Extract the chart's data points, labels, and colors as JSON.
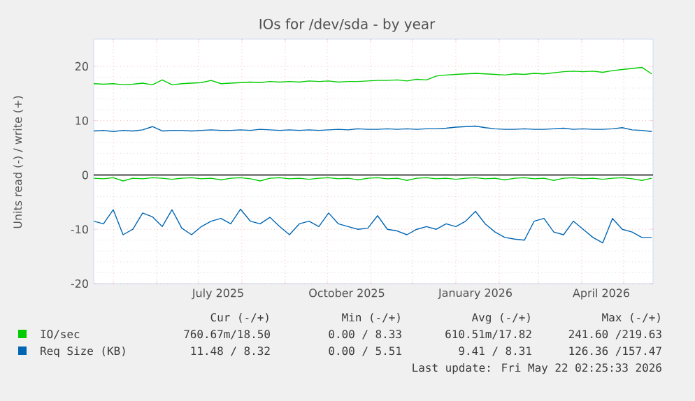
{
  "chart_data": {
    "type": "line",
    "title": "IOs for /dev/sda - by year",
    "ylabel": "Units read (-) / write (+)",
    "x": [
      "2025-04-17",
      "2025-04-24",
      "2025-05-01",
      "2025-05-08",
      "2025-05-15",
      "2025-05-22",
      "2025-05-29",
      "2025-06-05",
      "2025-06-12",
      "2025-06-19",
      "2025-06-26",
      "2025-07-03",
      "2025-07-10",
      "2025-07-17",
      "2025-07-24",
      "2025-07-31",
      "2025-08-07",
      "2025-08-14",
      "2025-08-21",
      "2025-08-28",
      "2025-09-04",
      "2025-09-11",
      "2025-09-18",
      "2025-09-25",
      "2025-10-02",
      "2025-10-09",
      "2025-10-16",
      "2025-10-23",
      "2025-10-30",
      "2025-11-06",
      "2025-11-13",
      "2025-11-20",
      "2025-11-27",
      "2025-12-04",
      "2025-12-11",
      "2025-12-18",
      "2025-12-25",
      "2026-01-01",
      "2026-01-08",
      "2026-01-15",
      "2026-01-22",
      "2026-01-29",
      "2026-02-05",
      "2026-02-12",
      "2026-02-19",
      "2026-02-26",
      "2026-03-05",
      "2026-03-12",
      "2026-03-19",
      "2026-03-26",
      "2026-04-02",
      "2026-04-09",
      "2026-04-16",
      "2026-04-23",
      "2026-04-30",
      "2026-05-07",
      "2026-05-14",
      "2026-05-21"
    ],
    "series": [
      {
        "name": "IO/sec",
        "color": "#00cc00",
        "values": [
          16.8,
          16.7,
          16.8,
          16.6,
          16.7,
          16.9,
          16.6,
          17.5,
          16.6,
          16.8,
          16.9,
          17.0,
          17.4,
          16.8,
          16.9,
          17.0,
          17.1,
          17.0,
          17.2,
          17.1,
          17.2,
          17.1,
          17.3,
          17.2,
          17.3,
          17.1,
          17.2,
          17.2,
          17.3,
          17.4,
          17.4,
          17.5,
          17.3,
          17.6,
          17.5,
          18.2,
          18.4,
          18.5,
          18.6,
          18.7,
          18.6,
          18.5,
          18.4,
          18.6,
          18.5,
          18.7,
          18.6,
          18.8,
          19.0,
          19.1,
          19.0,
          19.1,
          18.9,
          19.2,
          19.4,
          19.6,
          19.8,
          18.6
        ]
      },
      {
        "color": "#00cc00",
        "values": [
          -0.6,
          -0.7,
          -0.5,
          -1.1,
          -0.6,
          -0.7,
          -0.5,
          -0.6,
          -0.8,
          -0.6,
          -0.5,
          -0.7,
          -0.6,
          -0.9,
          -0.6,
          -0.5,
          -0.7,
          -1.1,
          -0.6,
          -0.5,
          -0.7,
          -0.6,
          -0.8,
          -0.6,
          -0.5,
          -0.7,
          -0.6,
          -0.9,
          -0.6,
          -0.5,
          -0.7,
          -0.6,
          -1.0,
          -0.6,
          -0.5,
          -0.7,
          -0.6,
          -0.8,
          -0.6,
          -0.5,
          -0.7,
          -0.6,
          -0.9,
          -0.6,
          -0.5,
          -0.7,
          -0.6,
          -1.0,
          -0.6,
          -0.5,
          -0.7,
          -0.6,
          -0.8,
          -0.6,
          -0.5,
          -0.7,
          -1.0,
          -0.6
        ]
      },
      {
        "name": "Req Size (KB)",
        "color": "#0066b3",
        "values": [
          8.1,
          8.2,
          8.0,
          8.2,
          8.1,
          8.3,
          8.9,
          8.1,
          8.2,
          8.2,
          8.1,
          8.2,
          8.3,
          8.2,
          8.2,
          8.3,
          8.2,
          8.4,
          8.3,
          8.2,
          8.3,
          8.2,
          8.3,
          8.2,
          8.3,
          8.4,
          8.3,
          8.5,
          8.4,
          8.4,
          8.5,
          8.4,
          8.5,
          8.4,
          8.5,
          8.5,
          8.6,
          8.8,
          8.9,
          9.0,
          8.7,
          8.5,
          8.4,
          8.4,
          8.5,
          8.4,
          8.4,
          8.5,
          8.6,
          8.4,
          8.5,
          8.4,
          8.4,
          8.5,
          8.7,
          8.3,
          8.2,
          8.0
        ]
      },
      {
        "color": "#0066b3",
        "values": [
          -8.5,
          -9.0,
          -6.4,
          -11.0,
          -10.0,
          -7.0,
          -7.7,
          -9.5,
          -6.4,
          -9.8,
          -11.0,
          -9.5,
          -8.5,
          -8.0,
          -9.0,
          -6.3,
          -8.5,
          -9.0,
          -7.8,
          -9.5,
          -11.0,
          -9.0,
          -8.5,
          -9.5,
          -7.0,
          -9.0,
          -9.5,
          -10.0,
          -9.8,
          -7.5,
          -10.0,
          -10.3,
          -11.0,
          -10.0,
          -9.5,
          -10.0,
          -9.0,
          -9.5,
          -8.5,
          -6.7,
          -9.0,
          -10.5,
          -11.5,
          -11.8,
          -12.0,
          -8.5,
          -8.0,
          -10.5,
          -11.0,
          -8.5,
          -10.0,
          -11.5,
          -12.5,
          -8.0,
          -10.0,
          -10.5,
          -11.5,
          -11.5
        ]
      }
    ],
    "xlim": [
      "2025-04-17",
      "2026-05-22"
    ],
    "xticks": [
      {
        "value": "2025-05-01",
        "label": null
      },
      {
        "value": "2025-06-01",
        "label": null
      },
      {
        "value": "2025-07-01",
        "label": null
      },
      {
        "value": "2025-07-15",
        "label": "July 2025"
      },
      {
        "value": "2025-08-01",
        "label": null
      },
      {
        "value": "2025-09-01",
        "label": null
      },
      {
        "value": "2025-10-01",
        "label": null
      },
      {
        "value": "2025-10-15",
        "label": "October 2025"
      },
      {
        "value": "2025-11-01",
        "label": null
      },
      {
        "value": "2025-12-01",
        "label": null
      },
      {
        "value": "2026-01-01",
        "label": null
      },
      {
        "value": "2026-01-15",
        "label": "January 2026"
      },
      {
        "value": "2026-02-01",
        "label": null
      },
      {
        "value": "2026-03-01",
        "label": null
      },
      {
        "value": "2026-04-01",
        "label": null
      },
      {
        "value": "2026-04-15",
        "label": "April 2026"
      },
      {
        "value": "2026-05-01",
        "label": null
      }
    ],
    "ylim": [
      -20,
      25
    ],
    "yticks": [
      -20,
      -10,
      0,
      10,
      20
    ],
    "ref_lines": [
      {
        "axis": "y",
        "value": 0,
        "color": "#000000"
      }
    ],
    "grid": true,
    "legend": "bottom",
    "marker": "none",
    "line_style": "solid",
    "annotations": [
      "Cur (-/+)",
      "Min (-/+)",
      "Avg (-/+)",
      "Max (-/+)",
      "760.67m/18.50",
      "0.00 / 8.33",
      "610.51m/17.82",
      "241.60 /219.63",
      "11.48 / 8.32",
      "0.00 / 5.51",
      "9.41 / 8.31",
      "126.36 /157.47",
      "Last update: Fri May 22 02:25:33 2026"
    ]
  }
}
